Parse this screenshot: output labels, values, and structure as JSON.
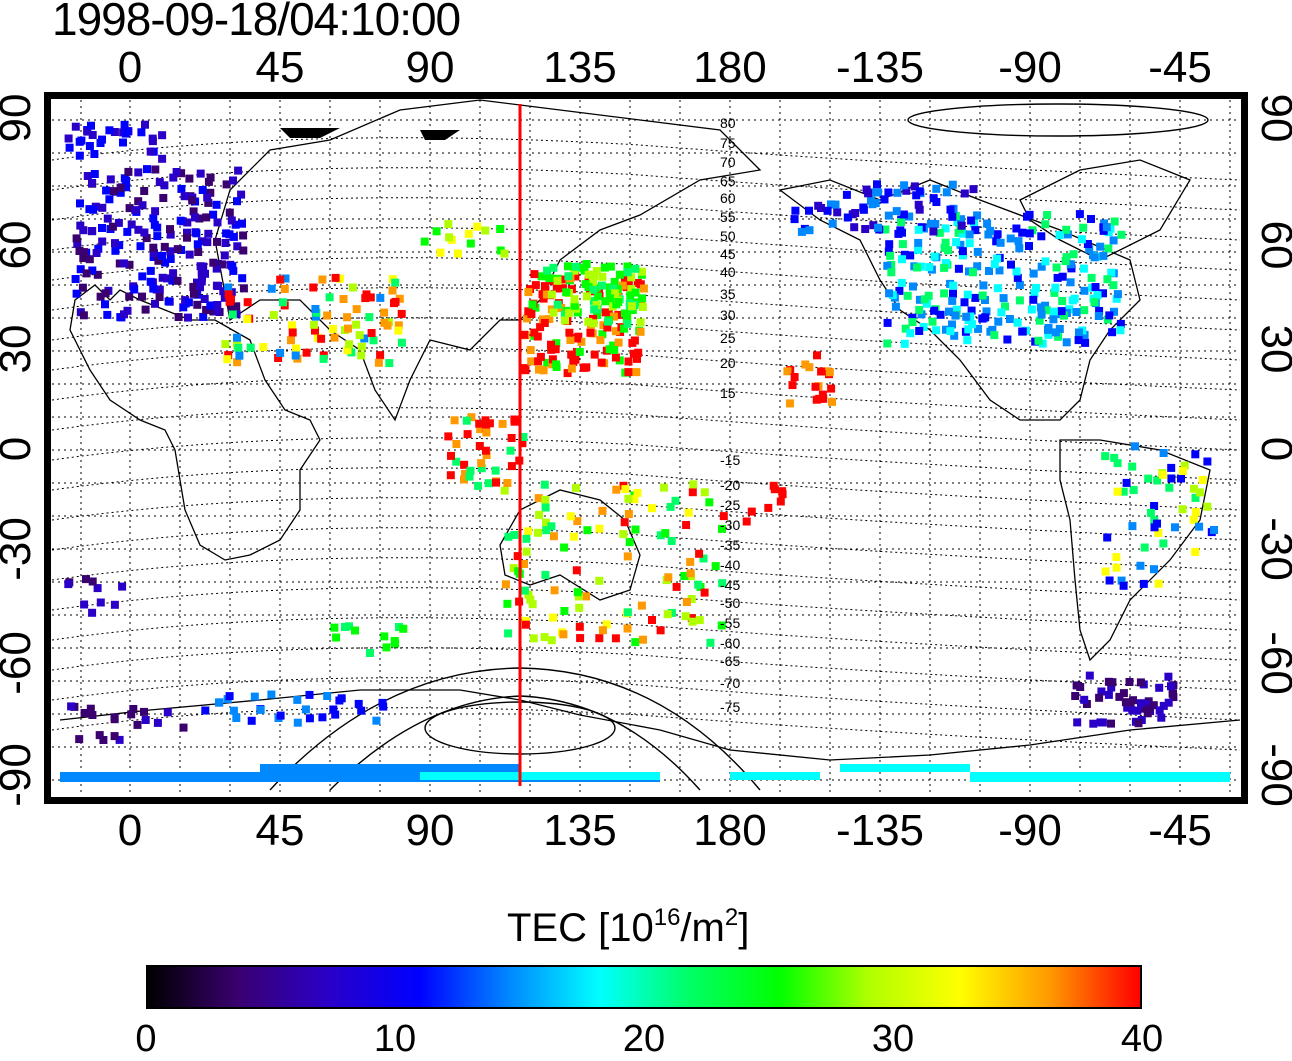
{
  "timestamp": "1998-09-18/04:10:00",
  "colors": {
    "accent": "#ff0000",
    "text": "#000000",
    "background": "#ffffff",
    "colormap": [
      "#000000",
      "#3a0070",
      "#2a00c8",
      "#0000ff",
      "#0088ff",
      "#00ffff",
      "#00ff66",
      "#00ff00",
      "#b0ff00",
      "#ffff00",
      "#ff9900",
      "#ff0000"
    ]
  },
  "map": {
    "projection": "equirectangular, centered near 165E",
    "top_lon_ticks": [
      "0",
      "45",
      "90",
      "135",
      "180",
      "-135",
      "-90",
      "-45"
    ],
    "bottom_lon_ticks": [
      "0",
      "45",
      "90",
      "135",
      "180",
      "-135",
      "-90",
      "-45"
    ],
    "lat_ticks": [
      "90",
      "60",
      "30",
      "0",
      "-30",
      "-60",
      "-90"
    ],
    "right_lat_ticks": [
      "90",
      "60",
      "30",
      "0",
      "-30",
      "-60",
      "-90"
    ],
    "contour_labels": [
      "80",
      "75",
      "70",
      "65",
      "60",
      "55",
      "50",
      "45",
      "40",
      "35",
      "30",
      "25",
      "20",
      "15",
      "-15",
      "-20",
      "-25",
      "-30",
      "-35",
      "-40",
      "-45",
      "-50",
      "-55",
      "-60",
      "-65",
      "-70",
      "-75"
    ],
    "marker_longitude": 120,
    "marker_description": "red vertical line marking local noon meridian"
  },
  "colorbar": {
    "title_main": "TEC  [10",
    "title_sup1": "16",
    "title_mid": "/m",
    "title_sup2": "2",
    "title_end": "]",
    "ticks": [
      "0",
      "10",
      "20",
      "30",
      "40"
    ],
    "min": 0,
    "max": 40
  }
}
